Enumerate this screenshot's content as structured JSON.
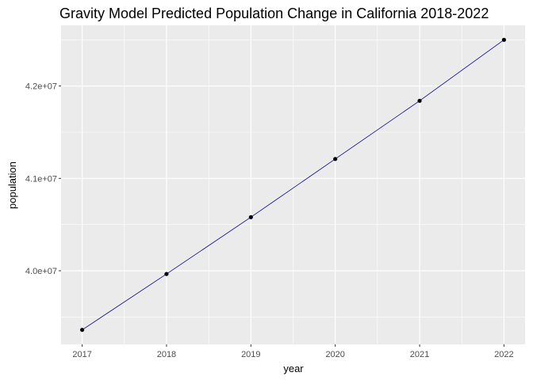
{
  "chart_data": {
    "type": "line",
    "title": "Gravity Model Predicted Population Change in California 2018-2022",
    "xlabel": "year",
    "ylabel": "population",
    "x": [
      2017,
      2018,
      2019,
      2020,
      2021,
      2022
    ],
    "series": [
      {
        "name": "population",
        "values": [
          39360000,
          39965000,
          40580000,
          41210000,
          41840000,
          42500000
        ]
      }
    ],
    "x_ticks": [
      2017,
      2018,
      2019,
      2020,
      2021,
      2022
    ],
    "x_tick_labels": [
      "2017",
      "2018",
      "2019",
      "2020",
      "2021",
      "2022"
    ],
    "y_ticks": [
      40000000,
      41000000,
      42000000
    ],
    "y_tick_labels": [
      "4.0e+07",
      "4.1e+07",
      "4.2e+07"
    ],
    "xlim": [
      2016.75,
      2022.25
    ],
    "ylim": [
      39203000,
      42657000
    ],
    "grid": true,
    "legend": "none",
    "colors": {
      "line": "#00008b",
      "point": "#000000",
      "panel": "#ebebeb",
      "grid": "#ffffff"
    }
  }
}
